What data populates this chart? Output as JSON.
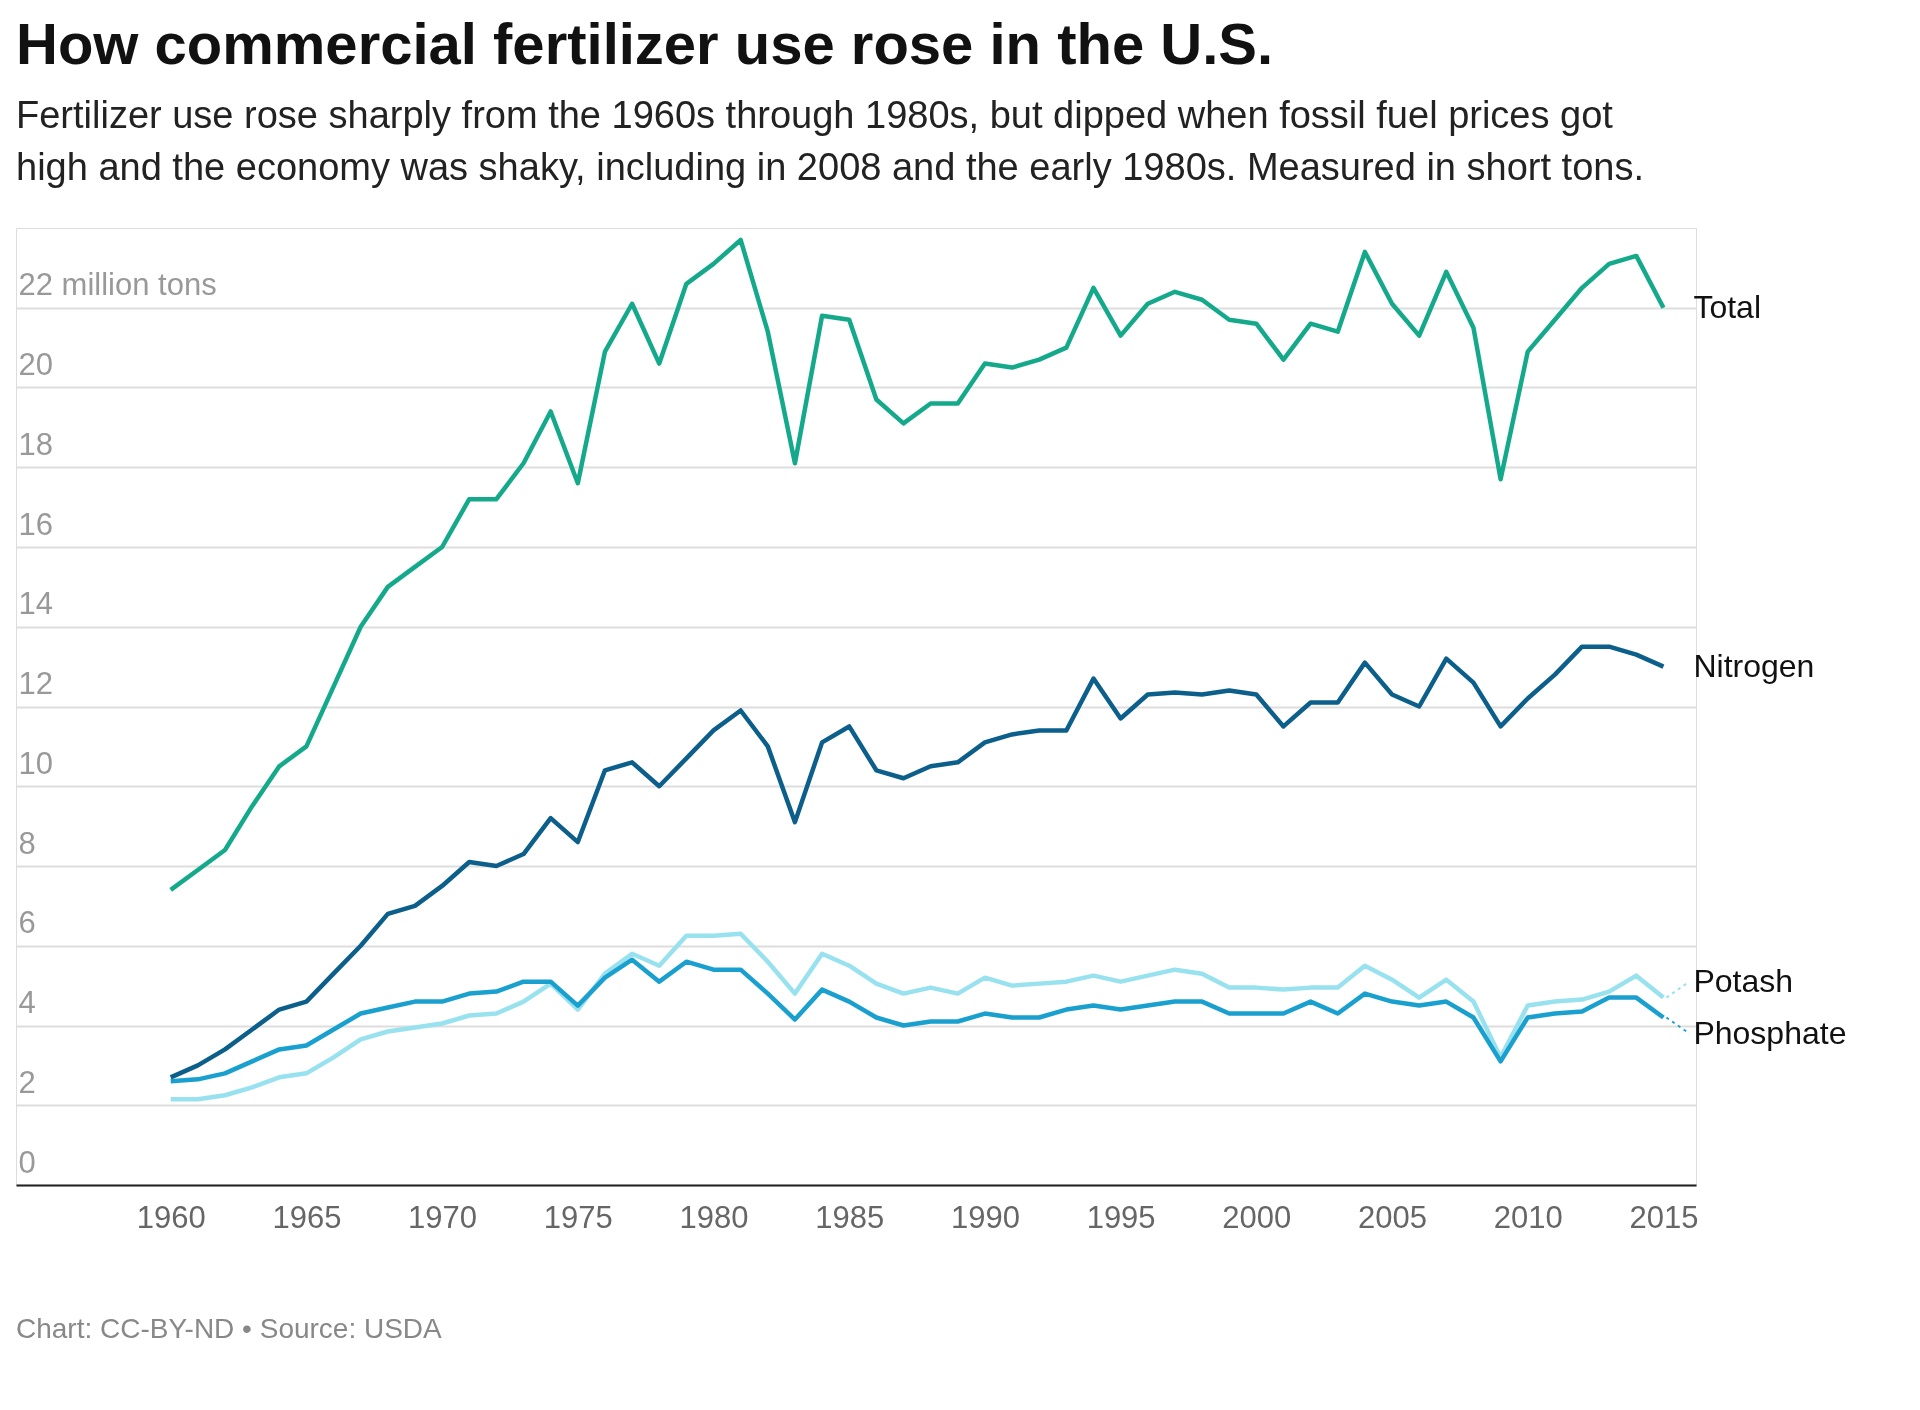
{
  "chart_data": {
    "type": "line",
    "title": "How commercial fertilizer use rose in the U.S.",
    "subtitle": "Fertilizer use rose sharply from the 1960s through 1980s, but dipped when fossil fuel prices got high and the economy was shaky, including in 2008 and the early 1980s. Measured in short tons.",
    "annotations": [
      "Chart: CC-BY-ND • Source: USDA"
    ],
    "x": [
      1960,
      1961,
      1962,
      1963,
      1964,
      1965,
      1966,
      1967,
      1968,
      1969,
      1970,
      1971,
      1972,
      1973,
      1974,
      1975,
      1976,
      1977,
      1978,
      1979,
      1980,
      1981,
      1982,
      1983,
      1984,
      1985,
      1986,
      1987,
      1988,
      1989,
      1990,
      1991,
      1992,
      1993,
      1994,
      1995,
      1996,
      1997,
      1998,
      1999,
      2000,
      2001,
      2002,
      2003,
      2004,
      2005,
      2006,
      2007,
      2008,
      2009,
      2010,
      2011,
      2012,
      2013,
      2014,
      2015
    ],
    "series": [
      {
        "name": "Total",
        "color": "#15a98c",
        "values": [
          7.4,
          7.9,
          8.4,
          9.5,
          10.5,
          11.0,
          12.5,
          14.0,
          15.0,
          15.5,
          16.0,
          17.2,
          17.2,
          18.1,
          19.4,
          17.6,
          20.9,
          22.1,
          20.6,
          22.6,
          23.1,
          23.7,
          21.4,
          18.1,
          21.8,
          21.7,
          19.7,
          19.1,
          19.6,
          19.6,
          20.6,
          20.5,
          20.7,
          21.0,
          22.5,
          21.3,
          22.1,
          22.4,
          22.2,
          21.7,
          21.6,
          20.7,
          21.6,
          21.4,
          23.4,
          22.1,
          21.3,
          22.9,
          21.5,
          17.7,
          20.9,
          21.7,
          22.5,
          23.1,
          23.3,
          22.0
        ]
      },
      {
        "name": "Nitrogen",
        "color": "#0b5f8a",
        "values": [
          2.7,
          3.0,
          3.4,
          3.9,
          4.4,
          4.6,
          5.3,
          6.0,
          6.8,
          7.0,
          7.5,
          8.1,
          8.0,
          8.3,
          9.2,
          8.6,
          10.4,
          10.6,
          10.0,
          10.7,
          11.4,
          11.9,
          11.0,
          9.1,
          11.1,
          11.5,
          10.4,
          10.2,
          10.5,
          10.6,
          11.1,
          11.3,
          11.4,
          11.4,
          12.7,
          11.7,
          12.3,
          12.35,
          12.3,
          12.4,
          12.3,
          11.5,
          12.1,
          12.1,
          13.1,
          12.3,
          12.0,
          13.2,
          12.6,
          11.5,
          12.2,
          12.8,
          13.5,
          13.5,
          13.3,
          13.0
        ]
      },
      {
        "name": "Potash",
        "color": "#98e1ef",
        "values": [
          2.15,
          2.15,
          2.25,
          2.45,
          2.7,
          2.8,
          3.2,
          3.65,
          3.85,
          3.95,
          4.05,
          4.25,
          4.3,
          4.6,
          5.05,
          4.4,
          5.3,
          5.8,
          5.5,
          6.25,
          6.25,
          6.3,
          5.6,
          4.8,
          5.8,
          5.5,
          5.05,
          4.8,
          4.95,
          4.8,
          5.2,
          5.0,
          5.05,
          5.1,
          5.25,
          5.1,
          5.25,
          5.4,
          5.3,
          4.95,
          4.95,
          4.9,
          4.95,
          4.95,
          5.5,
          5.15,
          4.7,
          5.15,
          4.6,
          3.2,
          4.5,
          4.6,
          4.65,
          4.85,
          5.25,
          4.7
        ]
      },
      {
        "name": "Phosphate",
        "color": "#1aa0cf",
        "values": [
          2.6,
          2.65,
          2.8,
          3.1,
          3.4,
          3.5,
          3.9,
          4.3,
          4.45,
          4.6,
          4.6,
          4.8,
          4.85,
          5.1,
          5.1,
          4.5,
          5.2,
          5.65,
          5.1,
          5.6,
          5.4,
          5.4,
          4.8,
          4.15,
          4.9,
          4.6,
          4.2,
          4.0,
          4.1,
          4.1,
          4.3,
          4.2,
          4.2,
          4.4,
          4.5,
          4.4,
          4.5,
          4.6,
          4.6,
          4.3,
          4.3,
          4.3,
          4.6,
          4.3,
          4.8,
          4.6,
          4.5,
          4.6,
          4.2,
          3.1,
          4.2,
          4.3,
          4.35,
          4.7,
          4.7,
          4.2
        ]
      }
    ],
    "xlim": [
      1954.3,
      2016.2
    ],
    "xticks": [
      1960,
      1965,
      1970,
      1975,
      1980,
      1985,
      1990,
      1995,
      2000,
      2005,
      2010,
      2015
    ],
    "ylim": [
      0,
      24
    ],
    "yticks": [
      0,
      2,
      4,
      6,
      8,
      10,
      12,
      14,
      16,
      18,
      20,
      {
        "value": 22,
        "label": "22 million tons"
      }
    ],
    "grid": "y",
    "legend": "right",
    "line_style": "solid",
    "marker": "none"
  }
}
